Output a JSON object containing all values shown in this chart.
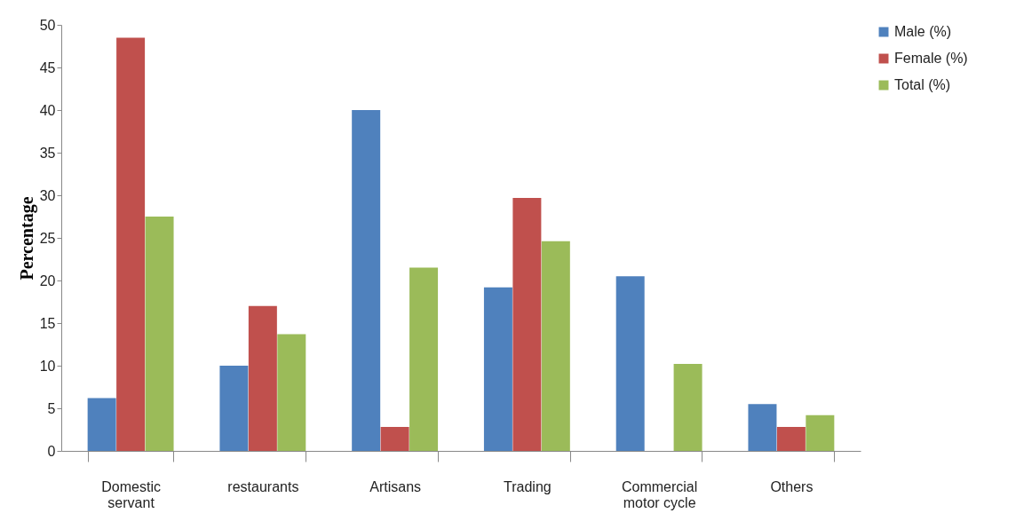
{
  "chart_data": {
    "type": "bar",
    "ylabel": "Percentage",
    "categories": [
      "Domestic servant",
      "restaurants",
      "Artisans",
      "Trading",
      "Commercial motor cycle",
      "Others"
    ],
    "series": [
      {
        "name": "Male (%)",
        "color": "#4f81bd",
        "values": [
          6.2,
          10,
          40,
          19.2,
          20.5,
          5.5
        ]
      },
      {
        "name": "Female (%)",
        "color": "#c0504d",
        "values": [
          48.5,
          17,
          2.8,
          29.7,
          0,
          2.8
        ]
      },
      {
        "name": "Total (%)",
        "color": "#9bbb59",
        "values": [
          27.5,
          13.7,
          21.5,
          24.6,
          10.2,
          4.2
        ]
      }
    ],
    "ylim": [
      0,
      50
    ],
    "yticks": [
      0,
      5,
      10,
      15,
      20,
      25,
      30,
      35,
      40,
      45,
      50
    ],
    "grid": false,
    "legend": "right"
  }
}
